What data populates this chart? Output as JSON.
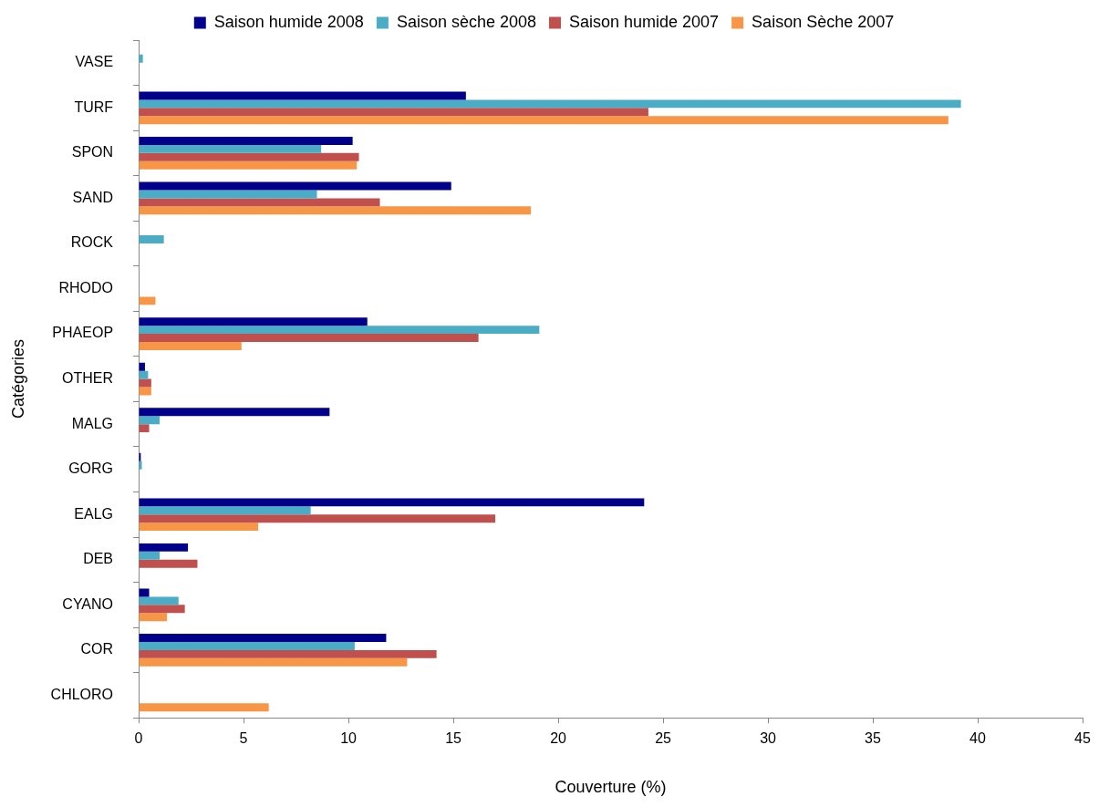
{
  "chart_data": {
    "type": "bar",
    "orientation": "horizontal",
    "xlabel": "Couverture (%)",
    "ylabel": "Catégories",
    "categories": [
      "VASE",
      "TURF",
      "SPON",
      "SAND",
      "ROCK",
      "RHODO",
      "PHAEOP",
      "OTHER",
      "MALG",
      "GORG",
      "EALG",
      "DEB",
      "CYANO",
      "COR",
      "CHLORO"
    ],
    "series": [
      {
        "name": "Saison humide 2008",
        "color": "#00008b",
        "values": [
          0,
          15.6,
          10.2,
          14.9,
          0,
          0,
          10.9,
          0.3,
          9.1,
          0.1,
          24.1,
          2.35,
          0.5,
          11.8,
          0
        ]
      },
      {
        "name": "Saison sèche 2008",
        "color": "#4bacc6",
        "values": [
          0.2,
          39.2,
          8.7,
          8.5,
          1.2,
          0,
          19.1,
          0.45,
          1.0,
          0.15,
          8.2,
          1.0,
          1.9,
          10.3,
          0
        ]
      },
      {
        "name": "Saison humide 2007",
        "color": "#c0504d",
        "values": [
          0,
          24.3,
          10.5,
          11.5,
          0,
          0,
          16.2,
          0.6,
          0.5,
          0,
          17.0,
          2.8,
          2.2,
          14.2,
          0
        ]
      },
      {
        "name": "Saison Sèche 2007",
        "color": "#f79646",
        "values": [
          0,
          38.6,
          10.4,
          18.7,
          0,
          0.8,
          4.9,
          0.6,
          0,
          0,
          5.7,
          0,
          1.35,
          12.8,
          6.2
        ]
      }
    ],
    "xlim": [
      0,
      45
    ],
    "xticks": [
      0,
      5,
      10,
      15,
      20,
      25,
      30,
      35,
      40,
      45
    ],
    "grid": false,
    "legend": "top"
  }
}
